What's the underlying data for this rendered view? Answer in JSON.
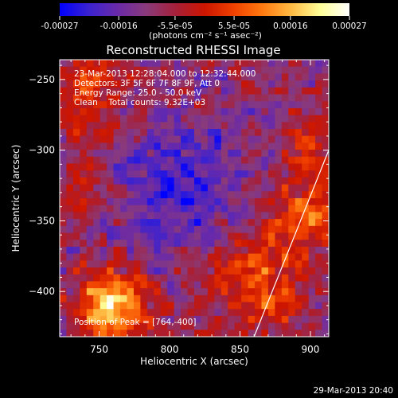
{
  "colors": {
    "background": "#000000",
    "text": "#ffffff",
    "colormap": [
      "#0000ff",
      "#3a22d0",
      "#6a2aa8",
      "#8a3a7a",
      "#a5203a",
      "#cc1500",
      "#f04000",
      "#ff7a10",
      "#ffbb44",
      "#ffff99",
      "#ffffff"
    ]
  },
  "colorbar": {
    "tick_labels": [
      "-0.00027",
      "-0.00016",
      "-5.5e-05",
      "5.5e-05",
      "0.00016",
      "0.00027"
    ],
    "unit_label": "(photons cm⁻² s⁻¹ asec⁻²)",
    "range": [
      -0.00027,
      0.00027
    ]
  },
  "footer": {
    "timestamp": "29-Mar-2013 20:40"
  },
  "chart_data": {
    "type": "heatmap",
    "title": "Reconstructed RHESSI Image",
    "xlabel": "Heliocentric X (arcsec)",
    "ylabel": "Heliocentric Y (arcsec)",
    "xlim": [
      722,
      913
    ],
    "ylim": [
      -432,
      -236
    ],
    "x_ticks": [
      750,
      800,
      850,
      900
    ],
    "y_ticks": [
      -250,
      -300,
      -350,
      -400
    ],
    "annotations": [
      "23-Mar-2013 12:28:04.000 to 12:32:44.000",
      "Detectors: 3F 5F 6F 7F 8F 9F, Att 0",
      "Energy Range: 25.0 - 50.0 keV",
      "Clean    Total counts: 9.32E+03",
      "Position of Peak = [764,-400]"
    ],
    "peak": [
      764,
      -400
    ],
    "limb_line": [
      [
        860,
        -432
      ],
      [
        913,
        -300
      ]
    ]
  }
}
